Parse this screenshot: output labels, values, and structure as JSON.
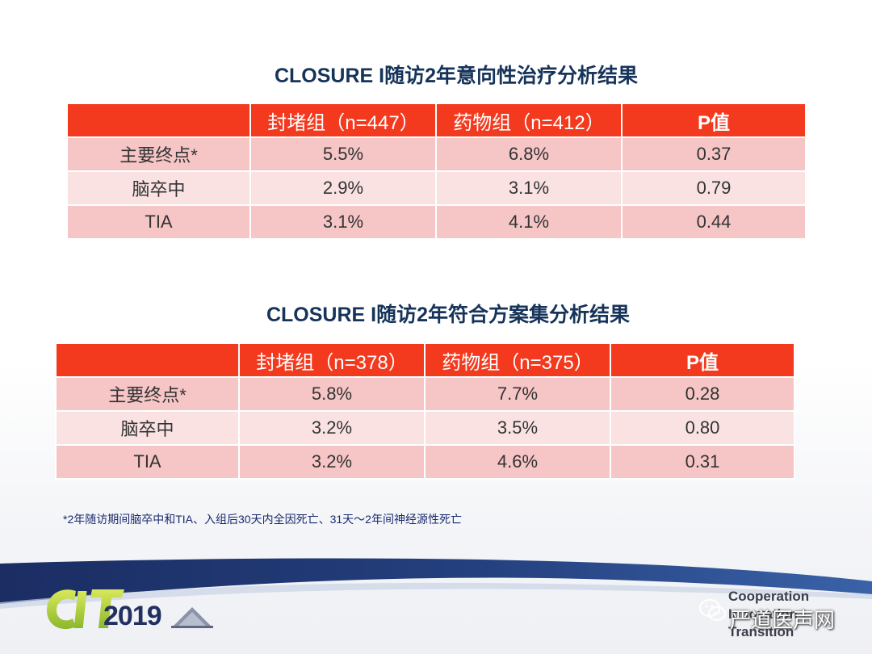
{
  "title1": "CLOSURE I随访2年意向性治疗分析结果",
  "table1": {
    "headers": [
      "",
      "封堵组（n=447）",
      "药物组（n=412）",
      "P值"
    ],
    "rows": [
      [
        "主要终点*",
        "5.5%",
        "6.8%",
        "0.37"
      ],
      [
        "脑卒中",
        "2.9%",
        "3.1%",
        "0.79"
      ],
      [
        "TIA",
        "3.1%",
        "4.1%",
        "0.44"
      ]
    ]
  },
  "title2": "CLOSURE I随访2年符合方案集分析结果",
  "table2": {
    "headers": [
      "",
      "封堵组（n=378）",
      "药物组（n=375）",
      "P值"
    ],
    "rows": [
      [
        "主要终点*",
        "5.8%",
        "7.7%",
        "0.28"
      ],
      [
        "脑卒中",
        "3.2%",
        "3.5%",
        "0.80"
      ],
      [
        "TIA",
        "3.2%",
        "4.6%",
        "0.31"
      ]
    ]
  },
  "footnote": "*2年随访期间脑卒中和TIA、入组后30天内全因死亡、31天～2年间神经源性死亡",
  "footer": {
    "logo_year": "2019",
    "watermark": "严道医声网",
    "coop_lines": [
      "Cooperation",
      "Innovation",
      "Transition"
    ]
  },
  "colors": {
    "header_red": "#f33a1e",
    "row_dark": "#f6c5c6",
    "row_light": "#fae2e3",
    "title_navy": "#16335a",
    "band_navy": "#1b2d63"
  }
}
